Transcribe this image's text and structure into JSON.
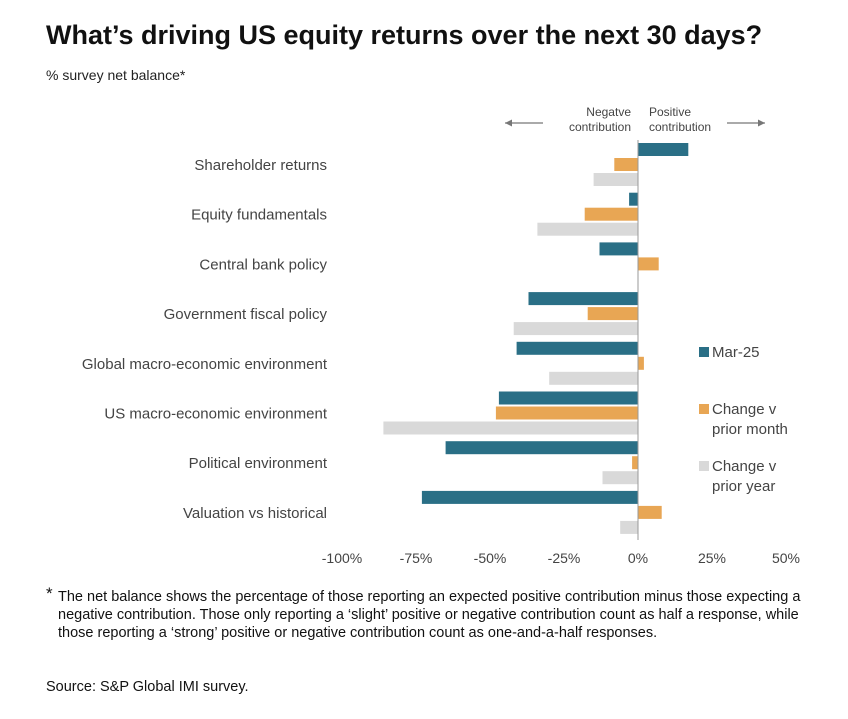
{
  "page": {
    "title": "What’s driving US equity returns over the next 30 days?",
    "subtitle": "% survey net balance*",
    "footnote_marker": "*",
    "footnote": "The net balance shows the percentage of those reporting an expected positive contribution minus those expecting a negative contribution. Those only reporting a ‘slight’ positive or negative contribution count as half a response, while those reporting a ‘strong’ positive or negative contribution count as one-and-a-half responses.",
    "source": "Source: S&P Global IMI survey."
  },
  "chart_data": {
    "type": "bar",
    "orientation": "horizontal",
    "title": "What’s driving US equity returns over the next 30 days?",
    "xlabel": "",
    "ylabel": "% survey net balance*",
    "xlim": [
      -100,
      50
    ],
    "xticks": [
      -100,
      -75,
      -50,
      -25,
      0,
      25,
      50
    ],
    "xtick_labels": [
      "-100%",
      "-75%",
      "-50%",
      "-25%",
      "0%",
      "25%",
      "50%"
    ],
    "direction_labels": {
      "negative": [
        "Negatve",
        "contribution"
      ],
      "positive": [
        "Positive",
        "contribution"
      ]
    },
    "categories": [
      "Shareholder returns",
      "Equity fundamentals",
      "Central bank policy",
      "Government fiscal policy",
      "Global macro-economic environment",
      "US macro-economic environment",
      "Political environment",
      "Valuation vs historical"
    ],
    "series": [
      {
        "name": "Mar-25",
        "legend_lines": [
          "Mar-25"
        ],
        "color": "#2a6f86",
        "values": [
          17,
          -3,
          -13,
          -37,
          -41,
          -47,
          -65,
          -73
        ]
      },
      {
        "name": "Change v prior month",
        "legend_lines": [
          "Change v",
          "prior month"
        ],
        "color": "#e8a654",
        "values": [
          -8,
          -18,
          7,
          -17,
          2,
          -48,
          -2,
          8
        ]
      },
      {
        "name": "Change v prior year",
        "legend_lines": [
          "Change v",
          "prior year"
        ],
        "color": "#d9d9d9",
        "values": [
          -15,
          -34,
          0,
          -42,
          -30,
          -86,
          -12,
          -6
        ]
      }
    ],
    "legend_position": "right",
    "grid": false
  }
}
